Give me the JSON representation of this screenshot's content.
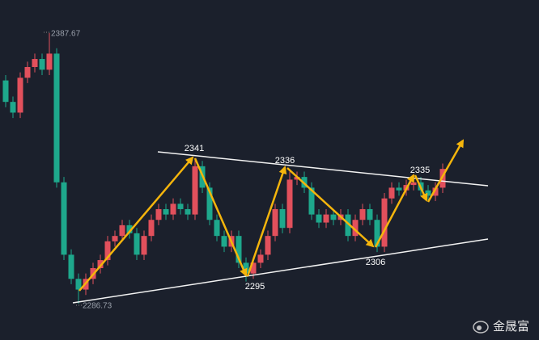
{
  "chart_data": {
    "type": "candlestick",
    "open": [
      2370,
      2362,
      2358,
      2371,
      2375,
      2378,
      2374,
      2380,
      2332,
      2305,
      2296,
      2292,
      2296,
      2300,
      2303,
      2310,
      2312,
      2316,
      2313,
      2305,
      2312,
      2318,
      2322,
      2320,
      2324,
      2322,
      2320,
      2338,
      2330,
      2318,
      2312,
      2308,
      2312,
      2302,
      2298,
      2302,
      2305,
      2312,
      2322,
      2315,
      2333,
      2334,
      2330,
      2320,
      2317,
      2320,
      2318,
      2320,
      2312,
      2318,
      2322,
      2318,
      2308,
      2326,
      2330,
      2329,
      2331,
      2332,
      2329,
      2327,
      2330
    ],
    "high": [
      2372,
      2364,
      2373,
      2377,
      2380,
      2380,
      2387.67,
      2382,
      2334,
      2307,
      2298,
      2298,
      2302,
      2305,
      2312,
      2314,
      2318,
      2318,
      2315,
      2314,
      2320,
      2324,
      2324,
      2326,
      2326,
      2324,
      2341,
      2340,
      2332,
      2320,
      2314,
      2314,
      2314,
      2304,
      2304,
      2307,
      2314,
      2324,
      2324,
      2336,
      2336,
      2336,
      2332,
      2322,
      2322,
      2322,
      2322,
      2322,
      2320,
      2324,
      2324,
      2320,
      2328,
      2332,
      2332,
      2333,
      2335,
      2334,
      2331,
      2332,
      2339
    ],
    "low": [
      2360,
      2356,
      2356,
      2369,
      2373,
      2372,
      2372,
      2330,
      2303,
      2294,
      2286.73,
      2290,
      2294,
      2298,
      2301,
      2308,
      2310,
      2311,
      2303,
      2303,
      2310,
      2316,
      2318,
      2318,
      2320,
      2318,
      2318,
      2328,
      2316,
      2310,
      2306,
      2306,
      2300,
      2295,
      2296,
      2300,
      2303,
      2310,
      2313,
      2313,
      2331,
      2328,
      2318,
      2315,
      2315,
      2316,
      2316,
      2310,
      2310,
      2316,
      2316,
      2306,
      2306,
      2324,
      2327,
      2327,
      2329,
      2327,
      2325,
      2325,
      2328
    ],
    "close": [
      2362,
      2358,
      2371,
      2375,
      2378,
      2374,
      2380,
      2332,
      2305,
      2296,
      2292,
      2296,
      2300,
      2303,
      2310,
      2312,
      2316,
      2313,
      2305,
      2312,
      2318,
      2322,
      2320,
      2324,
      2322,
      2320,
      2338,
      2330,
      2318,
      2312,
      2308,
      2312,
      2302,
      2298,
      2302,
      2305,
      2312,
      2322,
      2315,
      2333,
      2334,
      2330,
      2320,
      2317,
      2320,
      2318,
      2320,
      2312,
      2318,
      2322,
      2318,
      2308,
      2326,
      2330,
      2329,
      2331,
      2332,
      2329,
      2327,
      2330,
      2337
    ],
    "up_color": "#e2505c",
    "down_color": "#1ea88c",
    "ylim": [
      2275,
      2400
    ],
    "max_label": "2387.67",
    "min_label": "2286.73",
    "annotations": [
      "2341",
      "2336",
      "2335",
      "2295",
      "2306"
    ],
    "watermark": "金晟富"
  }
}
